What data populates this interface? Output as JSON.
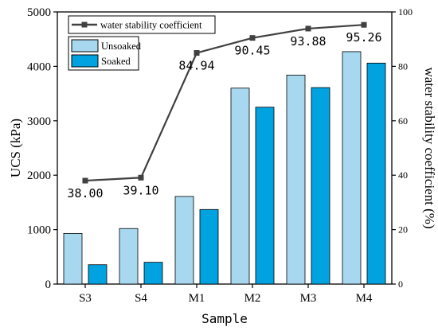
{
  "chart_data": {
    "type": "bar",
    "categories": [
      "S3",
      "S4",
      "M1",
      "M2",
      "M3",
      "M4"
    ],
    "series": [
      {
        "name": "Unsoaked",
        "type": "bar",
        "axis": "left",
        "color": "#a8d8f0",
        "values": [
          930,
          1020,
          1610,
          3600,
          3840,
          4270
        ]
      },
      {
        "name": "Soaked",
        "type": "bar",
        "axis": "left",
        "color": "#00a2e0",
        "values": [
          355,
          400,
          1370,
          3250,
          3610,
          4060
        ]
      },
      {
        "name": "water stability coefficient",
        "type": "line",
        "axis": "right",
        "color": "#404040",
        "values": [
          38.0,
          39.1,
          84.94,
          90.45,
          93.88,
          95.26
        ],
        "labels": [
          "38.00",
          "39.10",
          "84.94",
          "90.45",
          "93.88",
          "95.26"
        ]
      }
    ],
    "xlabel": "Sample",
    "ylabel": "UCS (kPa)",
    "y2label": "water stability coefficient (%)",
    "ylim": [
      0,
      5000
    ],
    "y2lim": [
      0,
      100
    ],
    "yticks": [
      "0",
      "1000",
      "2000",
      "3000",
      "4000",
      "5000"
    ],
    "y2ticks": [
      "0",
      "20",
      "40",
      "60",
      "80",
      "100"
    ],
    "legend": {
      "line": "water stability coefficient",
      "bars": [
        "Unsoaked",
        "Soaked"
      ]
    },
    "grid": false
  }
}
